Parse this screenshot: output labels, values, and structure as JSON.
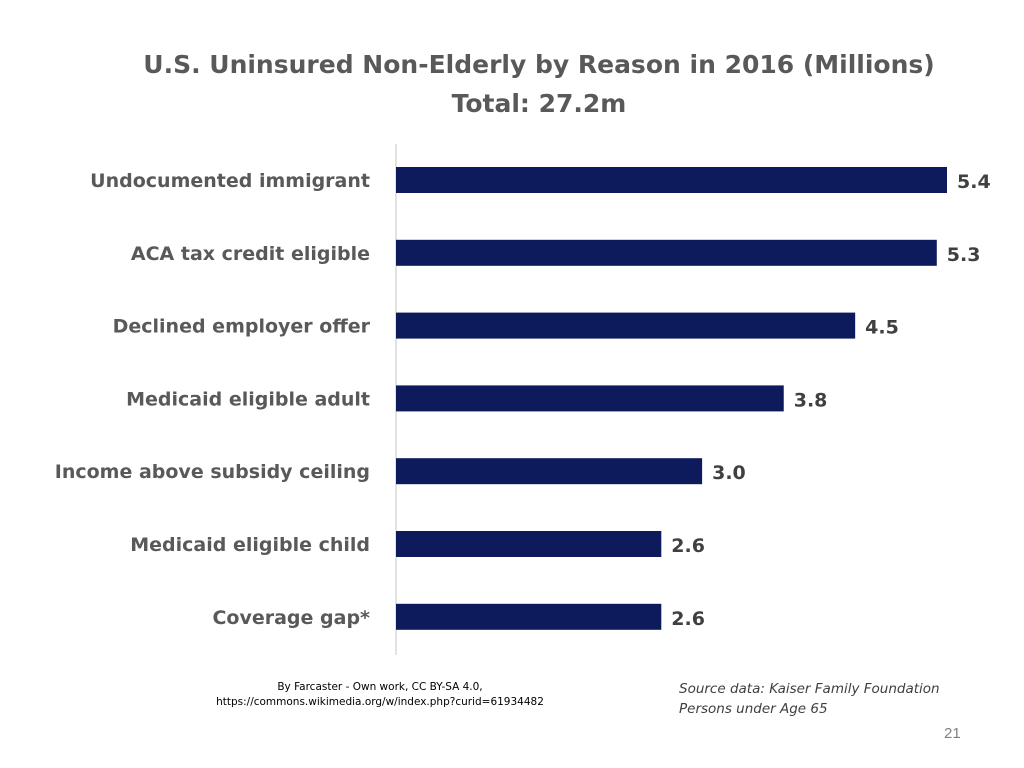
{
  "chart_data": {
    "type": "bar",
    "orientation": "horizontal",
    "title": "U.S. Uninsured Non-Elderly by Reason in 2016 (Millions)",
    "subtitle": "Total:  27.2m",
    "categories": [
      "Undocumented immigrant",
      "ACA tax credit eligible",
      "Declined employer offer",
      "Medicaid eligible adult",
      "Income above subsidy ceiling",
      "Medicaid eligible child",
      "Coverage gap*"
    ],
    "values": [
      5.4,
      5.3,
      4.5,
      3.8,
      3.0,
      2.6,
      2.6
    ],
    "value_labels": [
      "5.4",
      "5.3",
      "4.5",
      "3.8",
      "3.0",
      "2.6",
      "2.6"
    ],
    "xlim": [
      0,
      5.4
    ],
    "xlabel": "",
    "ylabel": "",
    "grid": false,
    "bar_color": "#0d1b5c"
  },
  "attribution": {
    "line1": "By Farcaster - Own work, CC BY-SA 4.0,",
    "line2": "https://commons.wikimedia.org/w/index.php?curid=61934482"
  },
  "source": {
    "line1": "Source data:  Kaiser Family Foundation",
    "line2": "Persons under Age 65"
  },
  "slide_number": "21"
}
